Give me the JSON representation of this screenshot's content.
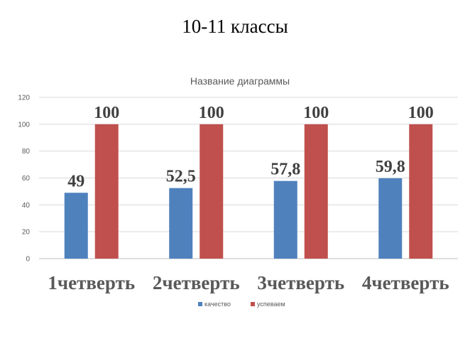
{
  "slide": {
    "title": "10-11 классы"
  },
  "chart_data": {
    "type": "bar",
    "title": "Название диаграммы",
    "categories": [
      "1четверть",
      "2четверть",
      "3четверть",
      "4четверть"
    ],
    "series": [
      {
        "name": "качество",
        "values": [
          49,
          52.5,
          57.8,
          59.8
        ],
        "labels": [
          "49",
          "52,5",
          "57,8",
          "59,8"
        ],
        "color": "#4f81bd"
      },
      {
        "name": "успеваем",
        "values": [
          100,
          100,
          100,
          100
        ],
        "labels": [
          "100",
          "100",
          "100",
          "100"
        ],
        "color": "#c0504d"
      }
    ],
    "ylim": [
      0,
      120
    ],
    "yticks": [
      "0",
      "20",
      "40",
      "60",
      "80",
      "100",
      "120"
    ],
    "grid": true,
    "legend": "bottom",
    "xlabel": "",
    "ylabel": ""
  }
}
